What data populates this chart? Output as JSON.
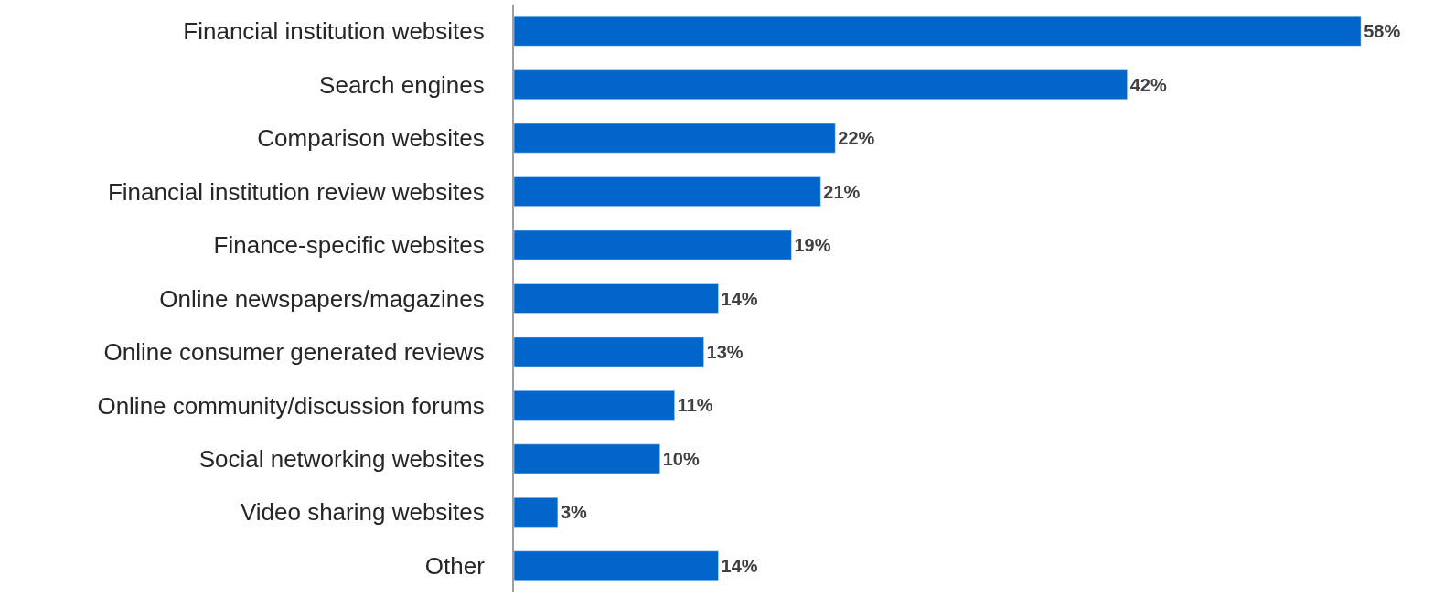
{
  "chart_data": {
    "type": "bar",
    "orientation": "horizontal",
    "categories": [
      "Financial institution websites",
      "Search engines",
      "Comparison websites",
      "Financial institution review websites",
      "Finance-specific websites",
      "Online newspapers/magazines",
      "Online consumer generated reviews",
      "Online community/discussion forums",
      "Social networking websites",
      "Video sharing websites",
      "Other"
    ],
    "values": [
      58,
      42,
      22,
      21,
      19,
      14,
      13,
      11,
      10,
      3,
      14
    ],
    "value_labels": [
      "58%",
      "42%",
      "22%",
      "21%",
      "19%",
      "14%",
      "13%",
      "11%",
      "10%",
      "3%",
      "14%"
    ],
    "color": "#0066cc",
    "xlim": [
      0,
      63
    ],
    "tick_labels": "y"
  }
}
